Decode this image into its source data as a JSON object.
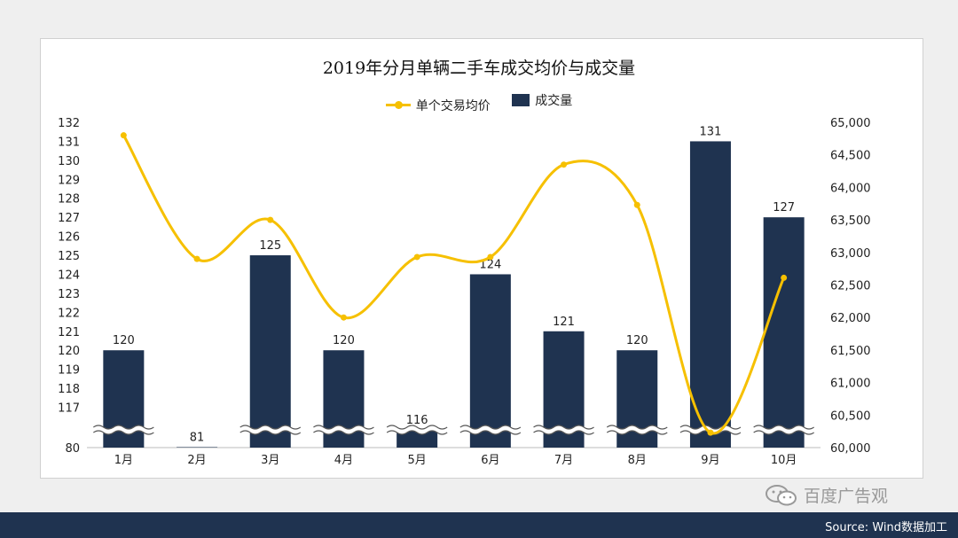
{
  "chart_data": {
    "type": "bar+line",
    "title": "2019年分月单辆二手车成交均价与成交量",
    "categories": [
      "1月",
      "2月",
      "3月",
      "4月",
      "5月",
      "6月",
      "7月",
      "8月",
      "9月",
      "10月"
    ],
    "series": [
      {
        "name": "单个交易均价",
        "type": "line",
        "axis": "right",
        "values": [
          64800,
          62900,
          63500,
          62000,
          62930,
          62930,
          64350,
          63730,
          60230,
          62610
        ],
        "color": "#f6c000"
      },
      {
        "name": "成交量",
        "type": "bar",
        "axis": "left",
        "values": [
          120,
          81,
          125,
          120,
          116,
          124,
          121,
          120,
          131,
          127
        ],
        "color": "#1f3350"
      }
    ],
    "left_axis": {
      "ticks": [
        "80",
        "117",
        "118",
        "119",
        "120",
        "121",
        "122",
        "123",
        "124",
        "125",
        "126",
        "127",
        "128",
        "129",
        "130",
        "131",
        "132"
      ],
      "broken": true,
      "break_range": [
        80,
        116.2
      ]
    },
    "right_axis": {
      "ylim": [
        60000,
        65000
      ],
      "ticks": [
        "60,000",
        "60,500",
        "61,000",
        "61,500",
        "62,000",
        "62,500",
        "63,000",
        "63,500",
        "64,000",
        "64,500",
        "65,000"
      ]
    },
    "legend_position": "top-center"
  },
  "source": "Source: Wind数据加工",
  "watermark": "百度广告观"
}
